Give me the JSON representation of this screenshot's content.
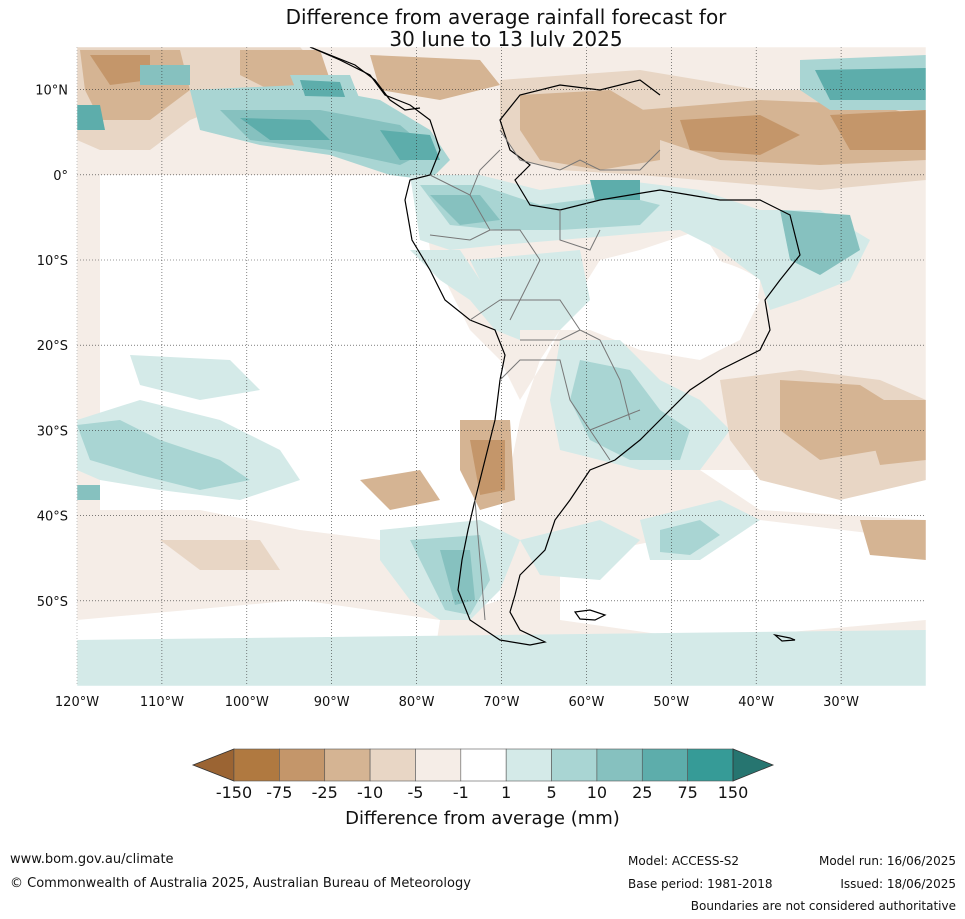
{
  "title": {
    "line1": "Difference from average rainfall forecast for",
    "line2": "30 June to 13 July 2025"
  },
  "map": {
    "lat_labels": [
      {
        "lat": 10,
        "text": "10°N"
      },
      {
        "lat": 0,
        "text": "0°"
      },
      {
        "lat": -10,
        "text": "10°S"
      },
      {
        "lat": -20,
        "text": "20°S"
      },
      {
        "lat": -30,
        "text": "30°S"
      },
      {
        "lat": -40,
        "text": "40°S"
      },
      {
        "lat": -50,
        "text": "50°S"
      }
    ],
    "lon_labels": [
      {
        "lon": -120,
        "text": "120°W"
      },
      {
        "lon": -110,
        "text": "110°W"
      },
      {
        "lon": -100,
        "text": "100°W"
      },
      {
        "lon": -90,
        "text": "90°W"
      },
      {
        "lon": -80,
        "text": "80°W"
      },
      {
        "lon": -70,
        "text": "70°W"
      },
      {
        "lon": -60,
        "text": "60°W"
      },
      {
        "lon": -50,
        "text": "50°W"
      },
      {
        "lon": -40,
        "text": "40°W"
      },
      {
        "lon": -30,
        "text": "30°W"
      }
    ],
    "extent": {
      "lon_min": -120,
      "lon_max": -20,
      "lat_min": -60,
      "lat_max": 15
    }
  },
  "colorbar": {
    "title": "Difference from average (mm)",
    "ticks": [
      "-150",
      "-75",
      "-25",
      "-10",
      "-5",
      "-1",
      "1",
      "5",
      "10",
      "25",
      "75",
      "150"
    ],
    "colors": [
      "#9b6433",
      "#b07940",
      "#c4966a",
      "#d5b493",
      "#e8d6c5",
      "#f5ede7",
      "#ffffff",
      "#d4eae8",
      "#a9d5d3",
      "#86c1bf",
      "#5dadab",
      "#369b97",
      "#267570"
    ]
  },
  "footer": {
    "website": "www.bom.gov.au/climate",
    "copyright": "© Commonwealth of Australia 2025, Australian Bureau of Meteorology",
    "model": "Model: ACCESS-S2",
    "base_period": "Base period: 1981-2018",
    "model_run": "Model run: 16/06/2025",
    "issued": "Issued: 18/06/2025",
    "disclaimer": "Boundaries are not considered authoritative"
  }
}
